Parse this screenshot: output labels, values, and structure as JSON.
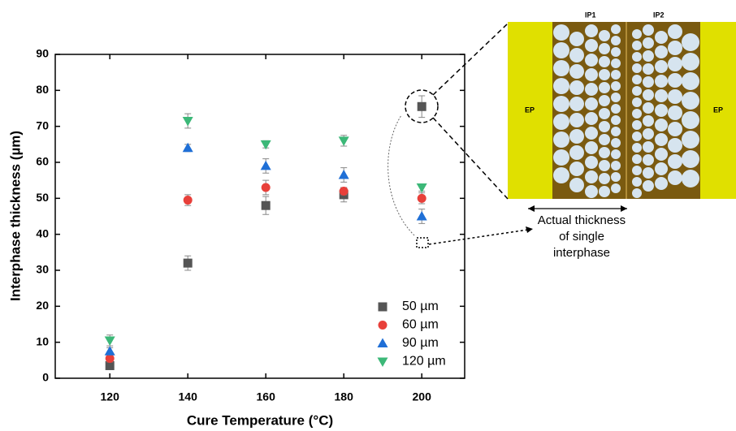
{
  "chart_data": {
    "type": "scatter",
    "x_label": "Cure Temperature (°C)",
    "y_label": "Interphase thickness (µm)",
    "x": [
      120,
      140,
      160,
      180,
      200
    ],
    "xlim": [
      106,
      211
    ],
    "xticks": [
      120,
      140,
      160,
      180,
      200
    ],
    "ylim": [
      0,
      90
    ],
    "yticks": [
      0,
      10,
      20,
      30,
      40,
      50,
      60,
      70,
      80,
      90
    ],
    "legend": "lower right",
    "series": [
      {
        "name": "50 µm",
        "color": "#555555",
        "marker": "square",
        "values": [
          3.5,
          32,
          48,
          51,
          75.5
        ],
        "errors": [
          1,
          2,
          2.5,
          2,
          3
        ]
      },
      {
        "name": "60 µm",
        "color": "#e8403a",
        "marker": "circle",
        "values": [
          5.5,
          49.5,
          53,
          52,
          50
        ],
        "errors": [
          1,
          1.5,
          2,
          1,
          1.5
        ]
      },
      {
        "name": "90 µm",
        "color": "#1f6fd6",
        "marker": "triangle-up",
        "values": [
          7.5,
          64,
          59,
          56.5,
          45
        ],
        "errors": [
          1,
          1,
          2,
          2,
          2
        ]
      },
      {
        "name": "120 µm",
        "color": "#3cb878",
        "marker": "triangle-down",
        "values": [
          10.5,
          71.5,
          65,
          66,
          53
        ],
        "errors": [
          1.5,
          2,
          1,
          1.5,
          1
        ]
      }
    ]
  },
  "inset": {
    "left_label": "EP",
    "right_label": "EP",
    "ip1": "IP1",
    "ip2": "IP2",
    "caption_lines": [
      "Actual thickness",
      "of single",
      "interphase"
    ]
  }
}
